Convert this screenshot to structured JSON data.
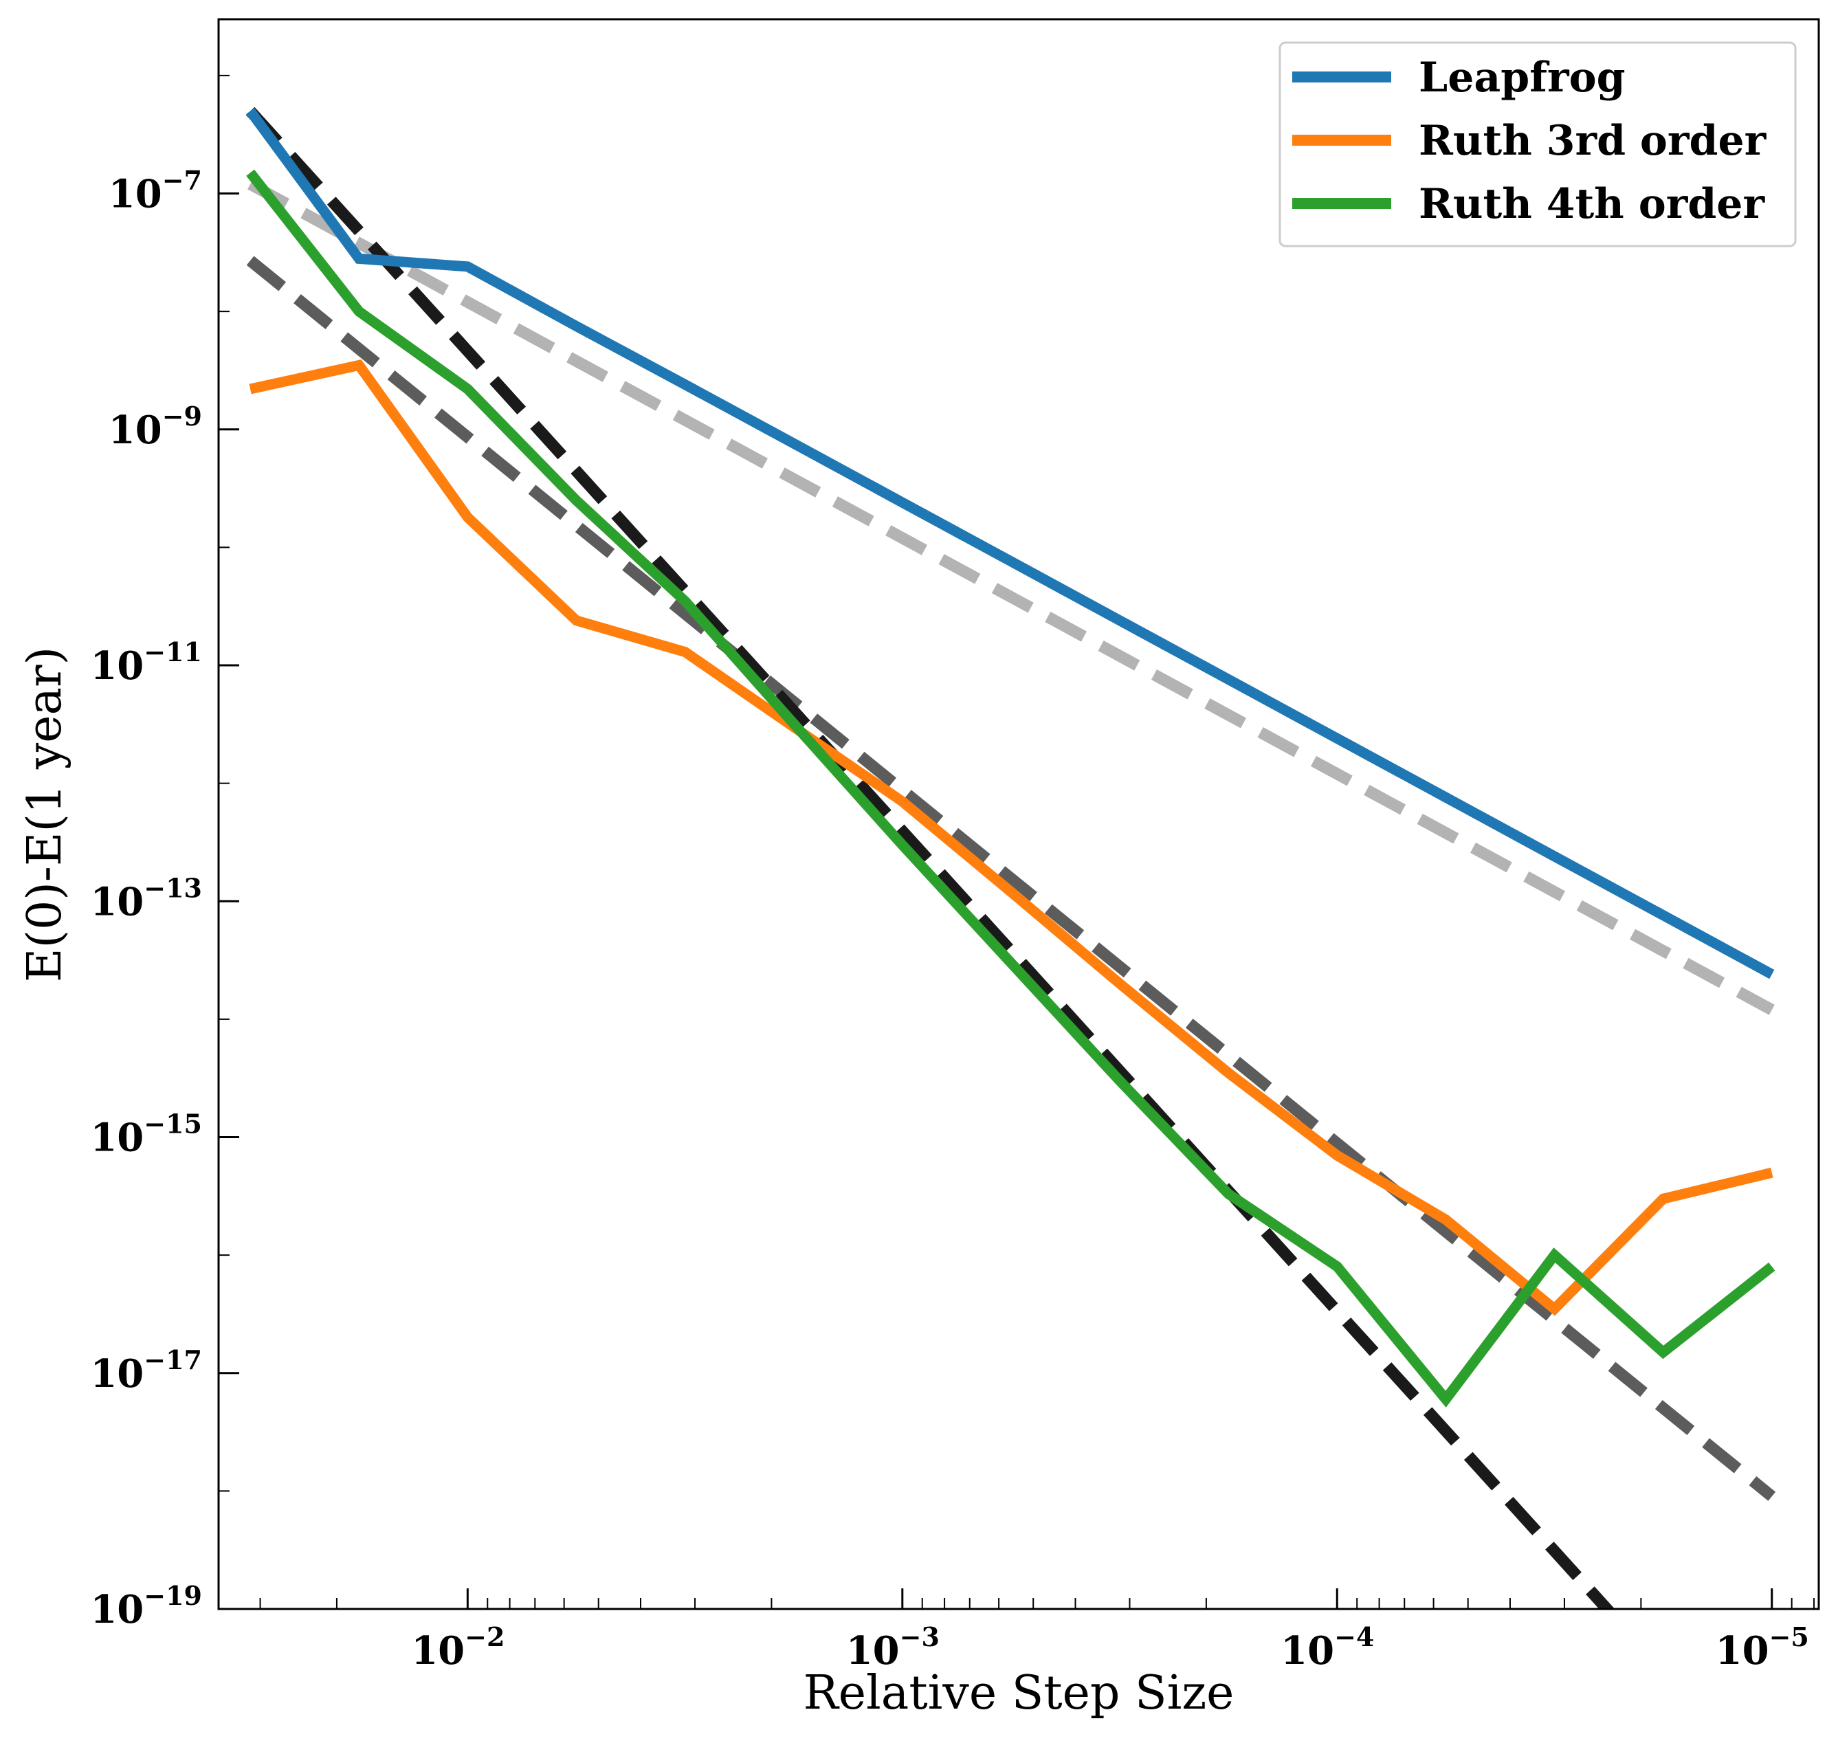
{
  "chart_data": {
    "type": "line",
    "xlabel": "Relative Step Size",
    "ylabel": "E(0)-E(1 year)",
    "x_scale": "log",
    "y_scale": "log",
    "x_reversed": true,
    "xlim": [
      0.0374,
      7.8e-06
    ],
    "ylim": [
      1e-19,
      3e-06
    ],
    "x_ticks": [
      {
        "value": 0.01,
        "base": "10",
        "exp": "−2"
      },
      {
        "value": 0.001,
        "base": "10",
        "exp": "−3"
      },
      {
        "value": 0.0001,
        "base": "10",
        "exp": "−4"
      },
      {
        "value": 1e-05,
        "base": "10",
        "exp": "−5"
      }
    ],
    "y_ticks": [
      {
        "value": 1e-07,
        "base": "10",
        "exp": "−7"
      },
      {
        "value": 1e-09,
        "base": "10",
        "exp": "−9"
      },
      {
        "value": 1e-11,
        "base": "10",
        "exp": "−11"
      },
      {
        "value": 1e-13,
        "base": "10",
        "exp": "−13"
      },
      {
        "value": 1e-15,
        "base": "10",
        "exp": "−15"
      },
      {
        "value": 1e-17,
        "base": "10",
        "exp": "−17"
      },
      {
        "value": 1e-19,
        "base": "10",
        "exp": "−19"
      }
    ],
    "x": [
      0.03162,
      0.01778,
      0.01,
      0.005623,
      0.003162,
      0.001778,
      0.001,
      0.0005623,
      0.0003162,
      0.0001778,
      0.0001,
      5.623e-05,
      3.162e-05,
      1.778e-05,
      1e-05
    ],
    "series": [
      {
        "name": "Leapfrog",
        "color": "#1f77b4",
        "values": [
          5e-07,
          2.8e-08,
          2.4e-08,
          7.5e-09,
          2.4e-09,
          7.6e-10,
          2.4e-10,
          7.6e-11,
          2.4e-11,
          7.6e-12,
          2.4e-12,
          7.6e-13,
          2.4e-13,
          7.6e-14,
          2.4e-14
        ]
      },
      {
        "name": "Ruth 3rd order",
        "color": "#ff7f0e",
        "values": [
          2.2e-09,
          3.5e-09,
          1.8e-10,
          2.4e-11,
          1.3e-11,
          3e-12,
          7e-13,
          1.2e-13,
          2e-14,
          3.5e-15,
          7e-16,
          2e-16,
          3.5e-17,
          3e-16,
          5e-16
        ]
      },
      {
        "name": "Ruth 4th order",
        "color": "#2ca02c",
        "values": [
          1.5e-07,
          1e-08,
          2.2e-09,
          2.5e-10,
          3.5e-11,
          3.2e-12,
          3e-13,
          3e-14,
          3e-15,
          3.3e-16,
          8e-17,
          6e-18,
          1e-16,
          1.5e-17,
          8e-17
        ]
      }
    ],
    "reference_lines": [
      {
        "color": "#b3b3b3",
        "x": [
          0.03162,
          1e-05
        ],
        "values": [
          1.2e-07,
          1.2e-14
        ]
      },
      {
        "color": "#5c5c5c",
        "x": [
          0.03162,
          1e-05
        ],
        "values": [
          2.7e-08,
          9e-19
        ]
      },
      {
        "color": "#1a1a1a",
        "x": [
          0.03162,
          2e-05
        ],
        "values": [
          5e-07,
          4.8e-20
        ]
      }
    ],
    "legend": {
      "position": "top-right",
      "entries": [
        "Leapfrog",
        "Ruth 3rd order",
        "Ruth 4th order"
      ]
    },
    "grid": false
  }
}
